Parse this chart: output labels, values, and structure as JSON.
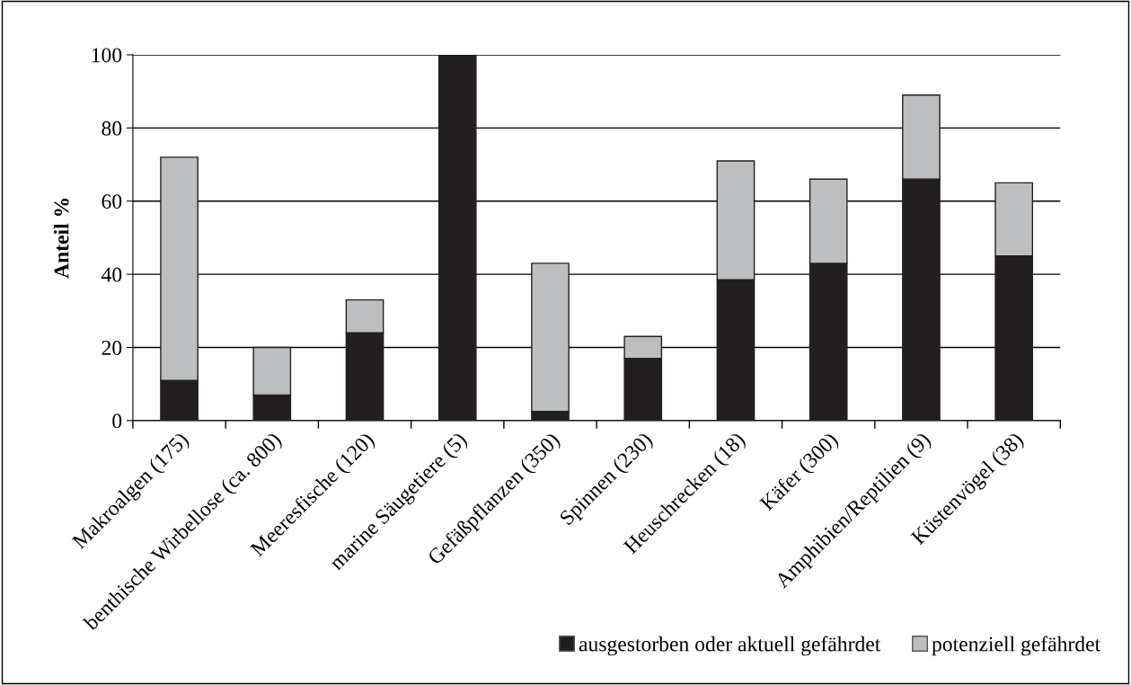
{
  "chart_data": {
    "type": "bar",
    "stacked": true,
    "ylabel": "Anteil %",
    "categories": [
      "Makroalgen (175)",
      "benthische Wirbellose (ca. 800)",
      "Meeresfische (120)",
      "marine Säugetiere (5)",
      "Gefäßpflanzen (350)",
      "Spinnen (230)",
      "Heuschrecken (18)",
      "Käfer (300)",
      "Amphibien/Reptilien (9)",
      "Küstenvögel (38)"
    ],
    "series": [
      {
        "name": "ausgestorben oder aktuell gefährdet",
        "color": "#231f20",
        "values": [
          11,
          7,
          24,
          100,
          2.5,
          17,
          38.5,
          43,
          66,
          45
        ]
      },
      {
        "name": "potenziell gefährdet",
        "color": "#bcbec0",
        "values": [
          61,
          13,
          9,
          0,
          40.5,
          6,
          32.5,
          23,
          23,
          20
        ]
      }
    ],
    "ylim": [
      0,
      100
    ],
    "yticks": [
      0,
      20,
      40,
      60,
      80,
      100
    ],
    "grid": "y",
    "legend": "bottom right"
  }
}
